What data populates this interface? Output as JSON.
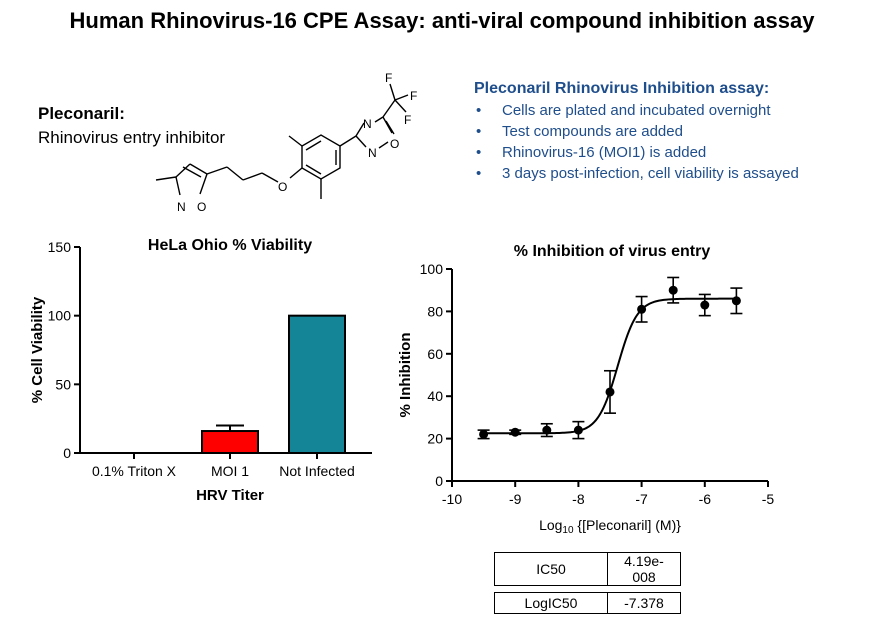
{
  "title": "Human Rhinovirus-16 CPE Assay: anti-viral compound inhibition assay",
  "compound": {
    "name": "Pleconaril:",
    "description": "Rhinovirus entry inhibitor",
    "structure_labels": {
      "n1": "N",
      "o1": "O",
      "n2": "N",
      "o2": "O",
      "n3": "N",
      "o3": "O",
      "f1": "F",
      "f2": "F",
      "f3": "F"
    }
  },
  "assay": {
    "heading": "Pleconaril Rhinovirus Inhibition assay:",
    "steps": [
      "Cells are plated and incubated overnight",
      "Test compounds are added",
      "Rhinovirus-16 (MOI1) is added",
      "3 days post-infection, cell viability is assayed"
    ]
  },
  "chart_data": [
    {
      "type": "bar",
      "title": "HeLa Ohio % Viability",
      "xlabel": "HRV Titer",
      "ylabel": "% Cell Viability",
      "categories": [
        "0.1% Triton X",
        "MOI 1",
        "Not Infected"
      ],
      "values": [
        0,
        16,
        100
      ],
      "errors": [
        0,
        4,
        0
      ],
      "colors": [
        "#ff0000",
        "#ff0000",
        "#138596"
      ],
      "ylim": [
        0,
        150
      ],
      "yticks": [
        "0",
        "50",
        "100",
        "150"
      ]
    },
    {
      "type": "scatter",
      "title": "% Inhibition of virus entry",
      "xlabel_prefix": "Log",
      "xlabel_sub": "10",
      "xlabel_suffix": " {[Pleconaril] (M)}",
      "ylabel": "% Inhibition",
      "xlim": [
        -10,
        -5
      ],
      "ylim": [
        0,
        100
      ],
      "xticks": [
        "-10",
        "-9",
        "-8",
        "-7",
        "-6",
        "-5"
      ],
      "yticks": [
        "0",
        "20",
        "40",
        "60",
        "80",
        "100"
      ],
      "x": [
        -9.5,
        -9.0,
        -8.5,
        -8.0,
        -7.5,
        -7.0,
        -6.5,
        -6.0,
        -5.5
      ],
      "y": [
        22,
        23,
        24,
        24,
        42,
        81,
        90,
        83,
        85
      ],
      "errors": [
        2,
        1,
        3,
        4,
        10,
        6,
        6,
        5,
        6
      ],
      "fit": {
        "bottom": 22.5,
        "top": 86,
        "logIC50": -7.378,
        "hill": 2.8
      }
    }
  ],
  "results": {
    "ic50_label": "IC50",
    "ic50_value": "4.19e-008",
    "logic50_label": "LogIC50",
    "logic50_value": "-7.378"
  }
}
